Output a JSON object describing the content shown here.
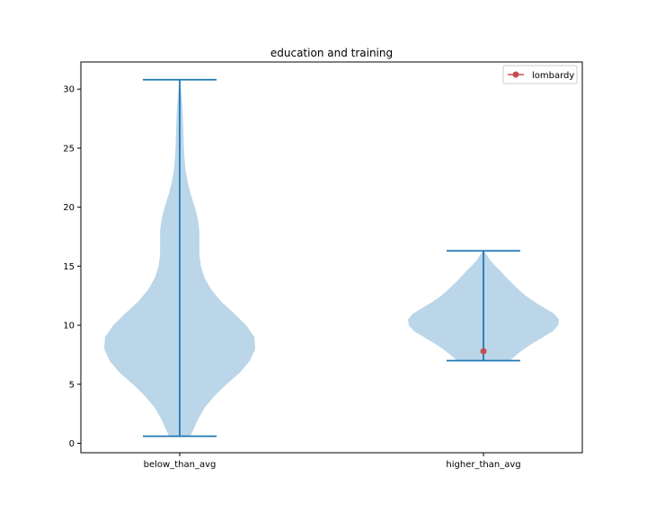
{
  "chart_data": {
    "type": "violin",
    "title": "education and training",
    "xlabel": "",
    "ylabel": "",
    "categories": [
      "below_than_avg",
      "higher_than_avg"
    ],
    "ylim": [
      -0.8,
      32.3
    ],
    "yticks": [
      0,
      5,
      10,
      15,
      20,
      25,
      30
    ],
    "grid": false,
    "violins": [
      {
        "category": "below_than_avg",
        "min": 0.6,
        "max": 30.8,
        "density_profile": [
          [
            0.6,
            0.14
          ],
          [
            1.0,
            0.17
          ],
          [
            2.0,
            0.24
          ],
          [
            3.0,
            0.33
          ],
          [
            4.0,
            0.46
          ],
          [
            5.0,
            0.62
          ],
          [
            6.0,
            0.8
          ],
          [
            7.0,
            0.93
          ],
          [
            8.0,
            1.0
          ],
          [
            9.0,
            0.99
          ],
          [
            10.0,
            0.88
          ],
          [
            11.0,
            0.72
          ],
          [
            12.0,
            0.55
          ],
          [
            13.0,
            0.42
          ],
          [
            14.0,
            0.33
          ],
          [
            15.0,
            0.28
          ],
          [
            16.0,
            0.26
          ],
          [
            17.0,
            0.26
          ],
          [
            18.0,
            0.26
          ],
          [
            19.0,
            0.24
          ],
          [
            20.0,
            0.2
          ],
          [
            21.0,
            0.15
          ],
          [
            22.0,
            0.11
          ],
          [
            23.0,
            0.08
          ],
          [
            24.0,
            0.065
          ],
          [
            25.0,
            0.055
          ],
          [
            26.0,
            0.05
          ],
          [
            27.0,
            0.045
          ],
          [
            28.0,
            0.04
          ],
          [
            29.0,
            0.03
          ],
          [
            30.0,
            0.015
          ],
          [
            30.8,
            0.0
          ]
        ]
      },
      {
        "category": "higher_than_avg",
        "min": 7.0,
        "max": 16.3,
        "density_profile": [
          [
            7.0,
            0.35
          ],
          [
            7.5,
            0.44
          ],
          [
            8.0,
            0.54
          ],
          [
            8.5,
            0.66
          ],
          [
            9.0,
            0.79
          ],
          [
            9.5,
            0.92
          ],
          [
            10.0,
            0.99
          ],
          [
            10.5,
            1.0
          ],
          [
            11.0,
            0.93
          ],
          [
            11.5,
            0.8
          ],
          [
            12.0,
            0.67
          ],
          [
            12.5,
            0.56
          ],
          [
            13.0,
            0.47
          ],
          [
            13.5,
            0.39
          ],
          [
            14.0,
            0.31
          ],
          [
            14.5,
            0.24
          ],
          [
            15.0,
            0.16
          ],
          [
            15.5,
            0.09
          ],
          [
            16.0,
            0.04
          ],
          [
            16.3,
            0.0
          ]
        ]
      }
    ],
    "markers": [
      {
        "category": "higher_than_avg",
        "y": 7.8,
        "label": "lombardy"
      }
    ],
    "legend": {
      "position": "top-right",
      "entries": [
        {
          "label": "lombardy"
        }
      ]
    }
  },
  "colors": {
    "violin_fill": "#1f77b4",
    "violin_line": "#1f77b4",
    "marker": "#c44e52",
    "marker_line": "#c44e52",
    "axes": "#000000"
  }
}
